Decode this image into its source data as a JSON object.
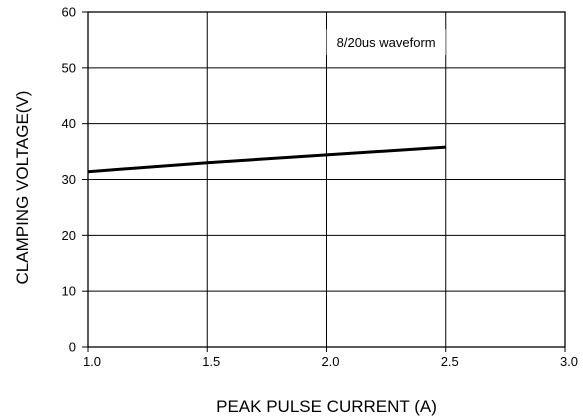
{
  "chart_data": {
    "type": "line",
    "title": "",
    "xlabel": "PEAK PULSE CURRENT (A)",
    "ylabel": "CLAMPING VOLTAGE(V)",
    "xlim": [
      1.0,
      3.0
    ],
    "ylim": [
      0,
      60
    ],
    "x_ticks": [
      "1.0",
      "1.5",
      "2.0",
      "2.5",
      "3.0"
    ],
    "y_ticks": [
      "0",
      "10",
      "20",
      "30",
      "40",
      "50",
      "60"
    ],
    "grid": true,
    "annotation": "8/20us waveform",
    "series": [
      {
        "x": [
          1.0,
          1.5,
          2.0,
          2.5
        ],
        "y": [
          31.4,
          33.0,
          34.4,
          35.8
        ],
        "color": "#000000"
      }
    ]
  }
}
